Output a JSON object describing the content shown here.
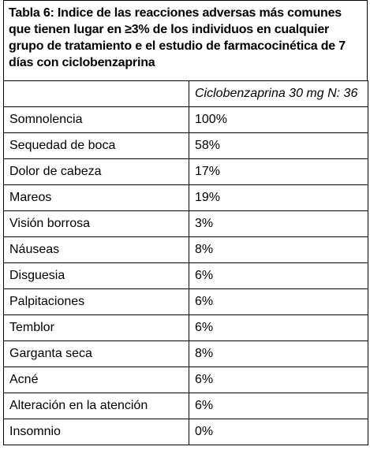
{
  "caption": {
    "line1": "Tabla 6: Indice de las reacciones adversas más comunes",
    "line2": "que tienen lugar en ≥3% de los individuos en cualquier",
    "line3": "grupo de tratamiento e el estudio de farmacocinética de 7",
    "line4": "días con ciclobenzaprina"
  },
  "table": {
    "header": {
      "col1": "",
      "col2": "Ciclobenzaprina 30 mg N: 36"
    },
    "rows": [
      {
        "reaction": "Somnolencia",
        "value": "100%"
      },
      {
        "reaction": "Sequedad de boca",
        "value": "58%"
      },
      {
        "reaction": "Dolor de cabeza",
        "value": "17%"
      },
      {
        "reaction": "Mareos",
        "value": "19%"
      },
      {
        "reaction": "Visión borrosa",
        "value": "3%"
      },
      {
        "reaction": "Náuseas",
        "value": "8%"
      },
      {
        "reaction": "Disguesia",
        "value": "6%"
      },
      {
        "reaction": "Palpitaciones",
        "value": "6%"
      },
      {
        "reaction": "Temblor",
        "value": "6%"
      },
      {
        "reaction": "Garganta seca",
        "value": "8%"
      },
      {
        "reaction": "Acné",
        "value": "6%"
      },
      {
        "reaction": "Alteración en la atención",
        "value": "6%"
      },
      {
        "reaction": "Insomnio",
        "value": "0%"
      }
    ]
  }
}
